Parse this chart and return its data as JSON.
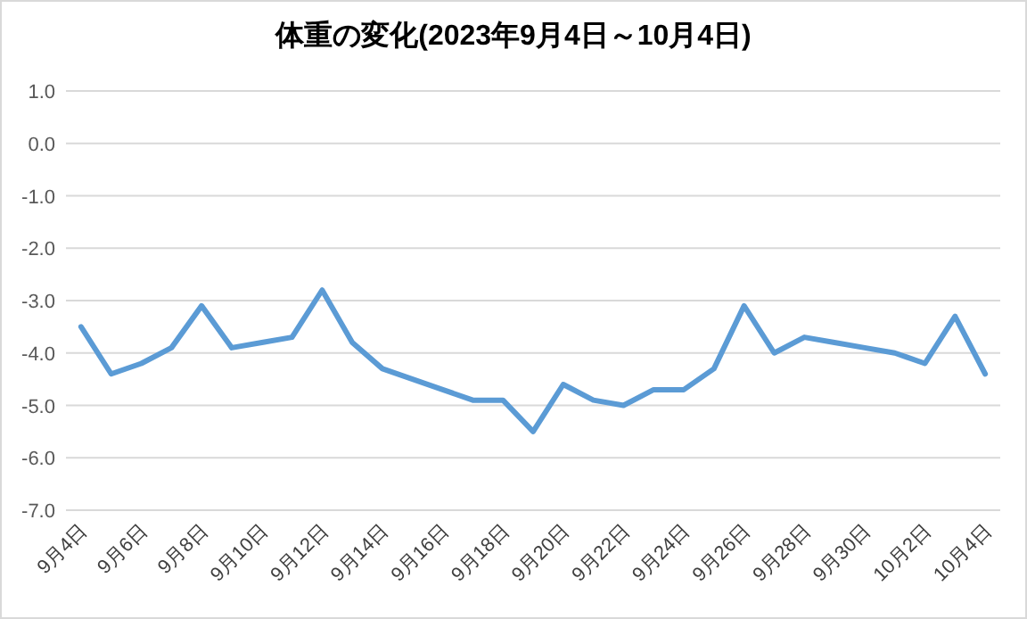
{
  "chart_data": {
    "type": "line",
    "title": "体重の変化(2023年9月4日～10月4日)",
    "categories": [
      "9月4日",
      null,
      "9月6日",
      null,
      "9月8日",
      null,
      "9月10日",
      null,
      "9月12日",
      null,
      "9月14日",
      null,
      "9月16日",
      null,
      "9月18日",
      null,
      "9月20日",
      null,
      "9月22日",
      null,
      "9月24日",
      null,
      "9月26日",
      null,
      "9月28日",
      null,
      "9月30日",
      null,
      "10月2日",
      null,
      "10月4日"
    ],
    "series": [
      {
        "color": "#5b9bd5",
        "values": [
          -3.5,
          -4.4,
          -4.2,
          -3.9,
          -3.1,
          -3.9,
          -3.8,
          -3.7,
          -2.8,
          -3.8,
          -4.3,
          -4.5,
          -4.7,
          -4.9,
          -4.9,
          -5.5,
          -4.6,
          -4.9,
          -5.0,
          -4.7,
          -4.7,
          -4.3,
          -3.1,
          -4.0,
          -3.7,
          -3.8,
          -3.9,
          -4.0,
          -4.2,
          -3.3,
          -4.4
        ]
      }
    ],
    "ylim": [
      -7,
      1
    ],
    "yticks": [
      {
        "value": 1,
        "label": "1.0"
      },
      {
        "value": 0,
        "label": "0.0"
      },
      {
        "value": -1,
        "label": "-1.0"
      },
      {
        "value": -2,
        "label": "-2.0"
      },
      {
        "value": -3,
        "label": "-3.0"
      },
      {
        "value": -4,
        "label": "-4.0"
      },
      {
        "value": -5,
        "label": "-5.0"
      },
      {
        "value": -6,
        "label": "-6.0"
      },
      {
        "value": -7,
        "label": "-7.0"
      }
    ],
    "grid": "y",
    "marker": "none",
    "line_style": "solid"
  }
}
